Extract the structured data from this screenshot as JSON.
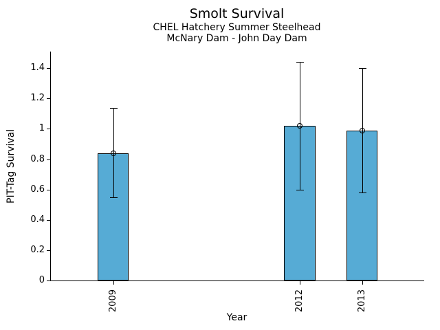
{
  "chart_data": {
    "type": "bar",
    "title": "Smolt Survival",
    "subtitle": [
      "CHEL Hatchery Summer Steelhead",
      "McNary Dam - John Day Dam"
    ],
    "xlabel": "Year",
    "ylabel": "PIT-Tag Survival",
    "categories": [
      "2009",
      "2012",
      "2013"
    ],
    "x_values": [
      2009,
      2012,
      2013
    ],
    "series": [
      {
        "name": "PIT-Tag Survival",
        "values": [
          0.84,
          1.02,
          0.99
        ],
        "ci_low": [
          0.55,
          0.6,
          0.58
        ],
        "ci_high": [
          1.14,
          1.44,
          1.4
        ]
      }
    ],
    "xlim": [
      2008,
      2014
    ],
    "ylim": [
      0,
      1.51
    ],
    "ytick_values": [
      0,
      0.2,
      0.4,
      0.6,
      0.8,
      1.0,
      1.2,
      1.4
    ],
    "ytick_labels": [
      "0",
      "0.2",
      "0.4",
      "0.6",
      "0.8",
      "1",
      "1.2",
      "1.4"
    ],
    "bar_width_years": 0.5,
    "grid": false,
    "legend": "none",
    "colors": {
      "bar_fill": "#56ABD5",
      "bar_edge": "#000000",
      "errorbar": "#000000",
      "axis": "#000000",
      "text": "#000000",
      "background": "#FFFFFF"
    }
  }
}
